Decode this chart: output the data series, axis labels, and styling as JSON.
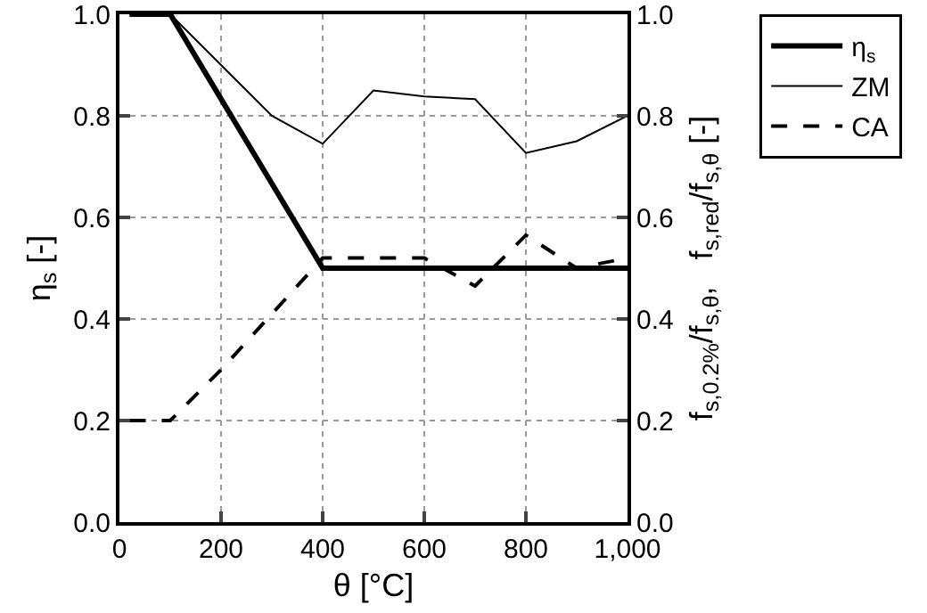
{
  "chart_data": {
    "type": "line",
    "xlabel": "θ [°C]",
    "ylabel": "η$_{s}$ [-]",
    "y2label": "f$_{s,0.2%}$/f$_{s,θ}$,   f$_{s,red}$/f$_{s,θ}$ [-]",
    "series": [
      {
        "name": "η$_{s}$",
        "color": "#000000",
        "line_style": "solid",
        "x": [
          20,
          100,
          400,
          1000
        ],
        "values": [
          1.0,
          1.0,
          0.5,
          0.5
        ]
      },
      {
        "name": "ZM",
        "color": "#000000",
        "line_style": "solid",
        "x": [
          20,
          100,
          200,
          300,
          400,
          500,
          600,
          700,
          800,
          900,
          1000
        ],
        "values": [
          1.0,
          1.0,
          0.9,
          0.8,
          0.745,
          0.85,
          0.838,
          0.833,
          0.727,
          0.75,
          0.8
        ]
      },
      {
        "name": "CA",
        "color": "#000000",
        "line_style": "dashed",
        "x": [
          20,
          100,
          200,
          300,
          400,
          500,
          600,
          700,
          800,
          900,
          1000
        ],
        "values": [
          0.2,
          0.2,
          0.3,
          0.41,
          0.52,
          0.52,
          0.52,
          0.465,
          0.565,
          0.5,
          0.52
        ]
      }
    ],
    "xlim": [
      0,
      1000
    ],
    "xticks": [
      0,
      200,
      400,
      600,
      {
        "value": 800,
        "label": "800"
      },
      {
        "value": 1000,
        "label": "1,000"
      }
    ],
    "ylim": [
      0,
      1
    ],
    "yticks": [
      {
        "value": 0,
        "label": "0.0"
      },
      0.2,
      0.4,
      0.6,
      0.8,
      {
        "value": 1,
        "label": "1.0"
      }
    ],
    "y2lim": [
      0,
      1
    ],
    "y2ticks": [
      {
        "value": 0,
        "label": "0.0"
      },
      0.2,
      0.4,
      0.6,
      0.8,
      {
        "value": 1,
        "label": "1.0"
      }
    ],
    "grid": true,
    "legend": "top right",
    "marker": "none"
  }
}
